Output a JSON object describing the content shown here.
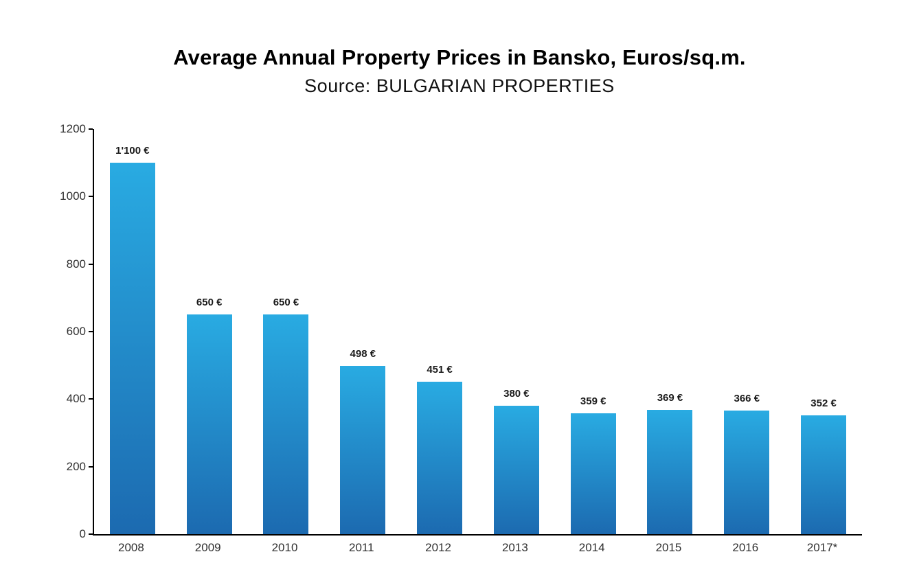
{
  "chart_data": {
    "type": "bar",
    "title": "Average Annual Property Prices in Bansko, Euros/sq.m.",
    "subtitle": "Source: BULGARIAN PROPERTIES",
    "categories": [
      "2008",
      "2009",
      "2010",
      "2011",
      "2012",
      "2013",
      "2014",
      "2015",
      "2016",
      "2017*"
    ],
    "values": [
      1100,
      650,
      650,
      498,
      451,
      380,
      359,
      369,
      366,
      352
    ],
    "value_labels": [
      "1'100 €",
      "650 €",
      "650 €",
      "498 €",
      "451 €",
      "380 €",
      "359 €",
      "369 €",
      "366 €",
      "352 €"
    ],
    "xlabel": "",
    "ylabel": "",
    "ylim": [
      0,
      1200
    ],
    "yticks": [
      0,
      200,
      400,
      600,
      800,
      1000,
      1200
    ],
    "grid": false,
    "legend": false,
    "bar_gradient_top": "#29ABE2",
    "bar_gradient_bottom": "#1C6AB0",
    "axis_color": "#000000",
    "background": "#ffffff"
  }
}
